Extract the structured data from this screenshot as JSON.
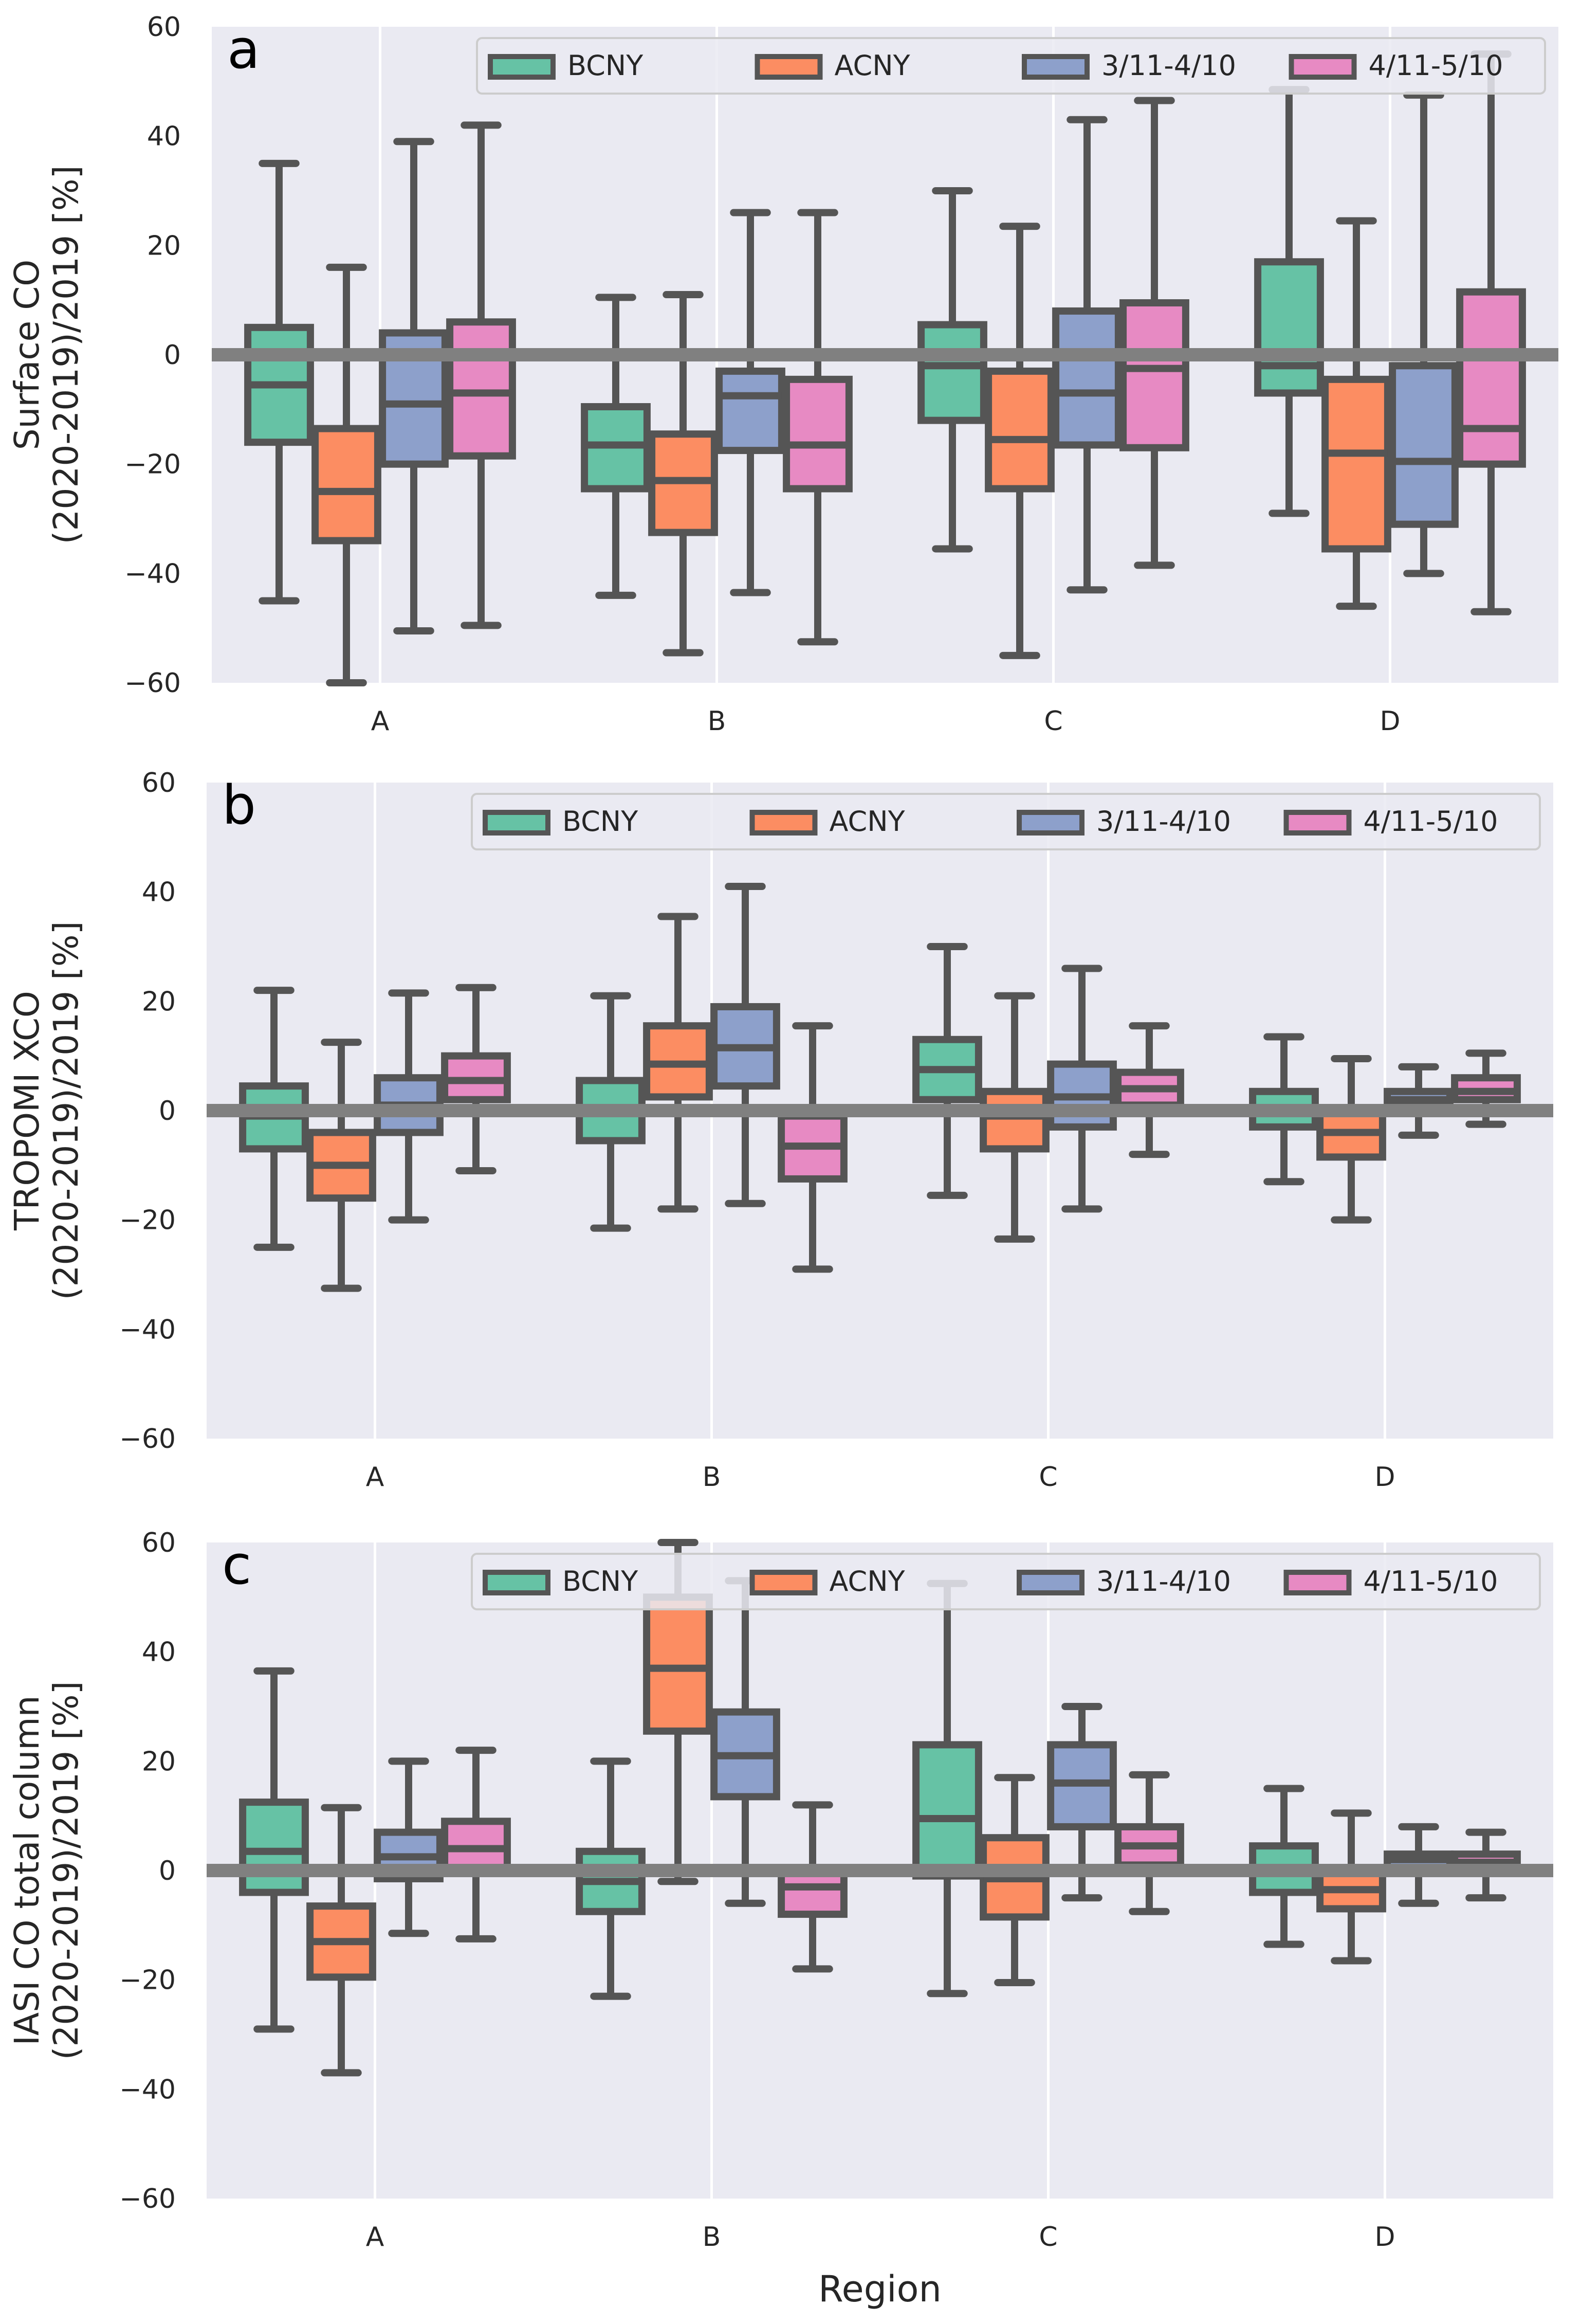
{
  "chart_data": [
    {
      "type": "box",
      "panel_label": "a",
      "ylabel_lines": [
        "Surface CO",
        "(2020-2019)/2019 [%]"
      ],
      "xlabel": "",
      "categories": [
        "A",
        "B",
        "C",
        "D"
      ],
      "ylim": [
        -60,
        60
      ],
      "yticks": [
        -60,
        -40,
        -20,
        0,
        20,
        40,
        60
      ],
      "ytick_labels": [
        "−60",
        "−40",
        "−20",
        "0",
        "20",
        "40",
        "60"
      ],
      "grid": true,
      "legend": "top-right",
      "series": [
        {
          "name": "BCNY",
          "color": "#66c2a5",
          "boxes": [
            {
              "whislo": -45,
              "q1": -16,
              "med": -5.5,
              "q3": 5,
              "whishi": 35
            },
            {
              "whislo": -44,
              "q1": -24.5,
              "med": -16.5,
              "q3": -9.5,
              "whishi": 10.5
            },
            {
              "whislo": -35.5,
              "q1": -12,
              "med": -2,
              "q3": 5.5,
              "whishi": 30
            },
            {
              "whislo": -29,
              "q1": -7,
              "med": -2,
              "q3": 17,
              "whishi": 48.5
            }
          ]
        },
        {
          "name": "ACNY",
          "color": "#fc8d62",
          "boxes": [
            {
              "whislo": -60,
              "q1": -34,
              "med": -25,
              "q3": -13.5,
              "whishi": 16
            },
            {
              "whislo": -54.5,
              "q1": -32.5,
              "med": -23,
              "q3": -14.5,
              "whishi": 11
            },
            {
              "whislo": -55,
              "q1": -24.5,
              "med": -15.5,
              "q3": -3,
              "whishi": 23.5
            },
            {
              "whislo": -46,
              "q1": -35.5,
              "med": -18,
              "q3": -4.5,
              "whishi": 24.5
            }
          ]
        },
        {
          "name": "3/11-4/10",
          "color": "#8da0cb",
          "boxes": [
            {
              "whislo": -50.5,
              "q1": -20,
              "med": -9,
              "q3": 4,
              "whishi": 39
            },
            {
              "whislo": -43.5,
              "q1": -17.5,
              "med": -7.5,
              "q3": -3,
              "whishi": 26
            },
            {
              "whislo": -43,
              "q1": -16.5,
              "med": -7,
              "q3": 8,
              "whishi": 43
            },
            {
              "whislo": -40,
              "q1": -31,
              "med": -19.5,
              "q3": -2,
              "whishi": 47.5
            }
          ]
        },
        {
          "name": "4/11-5/10",
          "color": "#e78ac3",
          "boxes": [
            {
              "whislo": -49.5,
              "q1": -18.5,
              "med": -7,
              "q3": 6,
              "whishi": 42
            },
            {
              "whislo": -52.5,
              "q1": -24.5,
              "med": -16.5,
              "q3": -4.5,
              "whishi": 26
            },
            {
              "whislo": -38.5,
              "q1": -17,
              "med": -2.5,
              "q3": 9.5,
              "whishi": 46.5
            },
            {
              "whislo": -47,
              "q1": -20,
              "med": -13.5,
              "q3": 11.5,
              "whishi": 55
            }
          ]
        }
      ]
    },
    {
      "type": "box",
      "panel_label": "b",
      "ylabel_lines": [
        "TROPOMI XCO",
        "(2020-2019)/2019 [%]"
      ],
      "xlabel": "",
      "categories": [
        "A",
        "B",
        "C",
        "D"
      ],
      "ylim": [
        -60,
        60
      ],
      "yticks": [
        -60,
        -40,
        -20,
        0,
        20,
        40,
        60
      ],
      "ytick_labels": [
        "−60",
        "−40",
        "−20",
        "0",
        "20",
        "40",
        "60"
      ],
      "grid": true,
      "legend": "top-right",
      "series": [
        {
          "name": "BCNY",
          "color": "#66c2a5",
          "boxes": [
            {
              "whislo": -25,
              "q1": -7,
              "med": -1,
              "q3": 4.5,
              "whishi": 22
            },
            {
              "whislo": -21.5,
              "q1": -5.5,
              "med": 0,
              "q3": 5.5,
              "whishi": 21
            },
            {
              "whislo": -15.5,
              "q1": 2,
              "med": 7.5,
              "q3": 13,
              "whishi": 30
            },
            {
              "whislo": -13,
              "q1": -3,
              "med": 0,
              "q3": 3.5,
              "whishi": 13.5
            }
          ]
        },
        {
          "name": "ACNY",
          "color": "#fc8d62",
          "boxes": [
            {
              "whislo": -32.5,
              "q1": -16,
              "med": -10,
              "q3": -4,
              "whishi": 12.5
            },
            {
              "whislo": -18,
              "q1": 2.5,
              "med": 8.5,
              "q3": 15.5,
              "whishi": 35.5
            },
            {
              "whislo": -23.5,
              "q1": -7,
              "med": -1,
              "q3": 3.5,
              "whishi": 21
            },
            {
              "whislo": -20,
              "q1": -8.5,
              "med": -4,
              "q3": -0.5,
              "whishi": 9.5
            }
          ]
        },
        {
          "name": "3/11-4/10",
          "color": "#8da0cb",
          "boxes": [
            {
              "whislo": -20,
              "q1": -4,
              "med": 1,
              "q3": 6,
              "whishi": 21.5
            },
            {
              "whislo": -17,
              "q1": 4.5,
              "med": 11.5,
              "q3": 19,
              "whishi": 41
            },
            {
              "whislo": -18,
              "q1": -3,
              "med": 2.5,
              "q3": 8.5,
              "whishi": 26
            },
            {
              "whislo": -4.5,
              "q1": 1,
              "med": 2,
              "q3": 3.5,
              "whishi": 8
            }
          ]
        },
        {
          "name": "4/11-5/10",
          "color": "#e78ac3",
          "boxes": [
            {
              "whislo": -11,
              "q1": 2,
              "med": 5.5,
              "q3": 10,
              "whishi": 22.5
            },
            {
              "whislo": -29,
              "q1": -12.5,
              "med": -6.5,
              "q3": -1,
              "whishi": 15.5
            },
            {
              "whislo": -8,
              "q1": 1,
              "med": 4,
              "q3": 7,
              "whishi": 15.5
            },
            {
              "whislo": -2.5,
              "q1": 2,
              "med": 3.5,
              "q3": 6,
              "whishi": 10.5
            }
          ]
        }
      ]
    },
    {
      "type": "box",
      "panel_label": "c",
      "ylabel_lines": [
        "IASI CO total column",
        "(2020-2019)/2019 [%]"
      ],
      "xlabel": "Region",
      "categories": [
        "A",
        "B",
        "C",
        "D"
      ],
      "ylim": [
        -60,
        60
      ],
      "yticks": [
        -60,
        -40,
        -20,
        0,
        20,
        40,
        60
      ],
      "ytick_labels": [
        "−60",
        "−40",
        "−20",
        "0",
        "20",
        "40",
        "60"
      ],
      "grid": true,
      "legend": "top-right",
      "series": [
        {
          "name": "BCNY",
          "color": "#66c2a5",
          "boxes": [
            {
              "whislo": -29,
              "q1": -4,
              "med": 3.5,
              "q3": 12.5,
              "whishi": 36.5
            },
            {
              "whislo": -23,
              "q1": -7.5,
              "med": -2,
              "q3": 3.5,
              "whishi": 20
            },
            {
              "whislo": -22.5,
              "q1": -1,
              "med": 9.5,
              "q3": 23,
              "whishi": 52.5
            },
            {
              "whislo": -13.5,
              "q1": -4,
              "med": 0.5,
              "q3": 4.5,
              "whishi": 15
            }
          ]
        },
        {
          "name": "ACNY",
          "color": "#fc8d62",
          "boxes": [
            {
              "whislo": -37,
              "q1": -19.5,
              "med": -13,
              "q3": -6.5,
              "whishi": 11.5
            },
            {
              "whislo": -2,
              "q1": 25.5,
              "med": 37,
              "q3": 50,
              "whishi": 60
            },
            {
              "whislo": -20.5,
              "q1": -8.5,
              "med": -1.5,
              "q3": 6,
              "whishi": 17
            },
            {
              "whislo": -16.5,
              "q1": -7,
              "med": -3.5,
              "q3": 0,
              "whishi": 10.5
            }
          ]
        },
        {
          "name": "3/11-4/10",
          "color": "#8da0cb",
          "boxes": [
            {
              "whislo": -11.5,
              "q1": -1.5,
              "med": 2.5,
              "q3": 7,
              "whishi": 20
            },
            {
              "whislo": -6,
              "q1": 13.5,
              "med": 21,
              "q3": 29,
              "whishi": 53
            },
            {
              "whislo": -5,
              "q1": 8,
              "med": 16,
              "q3": 23,
              "whishi": 30
            },
            {
              "whislo": -6,
              "q1": 0.5,
              "med": 2,
              "q3": 3,
              "whishi": 8
            }
          ]
        },
        {
          "name": "4/11-5/10",
          "color": "#e78ac3",
          "boxes": [
            {
              "whislo": -12.5,
              "q1": 0.5,
              "med": 4,
              "q3": 9,
              "whishi": 22
            },
            {
              "whislo": -18,
              "q1": -8,
              "med": -3,
              "q3": -0.5,
              "whishi": 12
            },
            {
              "whislo": -7.5,
              "q1": 1,
              "med": 4.5,
              "q3": 8,
              "whishi": 17.5
            },
            {
              "whislo": -5,
              "q1": 0,
              "med": 1.5,
              "q3": 3,
              "whishi": 7
            }
          ]
        }
      ]
    }
  ]
}
